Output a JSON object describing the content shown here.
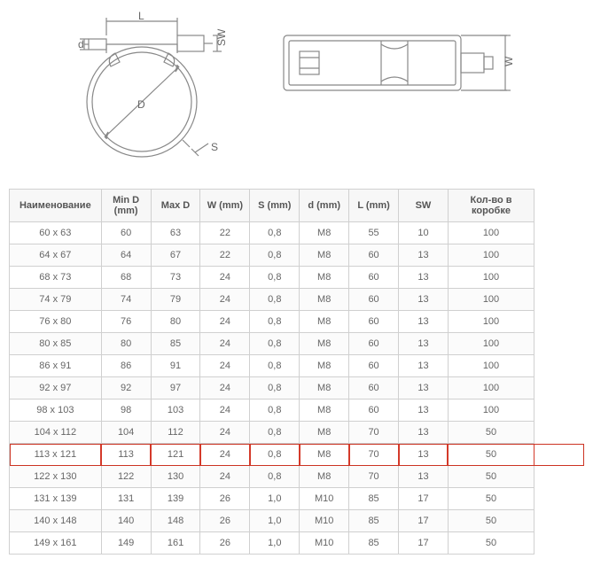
{
  "diagram": {
    "stroke": "#888888",
    "label_color": "#666666"
  },
  "table": {
    "headers": [
      "Наименование",
      "Min D (mm)",
      "Max D",
      "W (mm)",
      "S (mm)",
      "d (mm)",
      "L (mm)",
      "SW",
      "Кол-во в коробке"
    ],
    "highlight_index": 10,
    "rows": [
      [
        "60 x 63",
        "60",
        "63",
        "22",
        "0,8",
        "M8",
        "55",
        "10",
        "100"
      ],
      [
        "64 x 67",
        "64",
        "67",
        "22",
        "0,8",
        "M8",
        "60",
        "13",
        "100"
      ],
      [
        "68 x 73",
        "68",
        "73",
        "24",
        "0,8",
        "M8",
        "60",
        "13",
        "100"
      ],
      [
        "74 x 79",
        "74",
        "79",
        "24",
        "0,8",
        "M8",
        "60",
        "13",
        "100"
      ],
      [
        "76 x 80",
        "76",
        "80",
        "24",
        "0,8",
        "M8",
        "60",
        "13",
        "100"
      ],
      [
        "80 x 85",
        "80",
        "85",
        "24",
        "0,8",
        "M8",
        "60",
        "13",
        "100"
      ],
      [
        "86 x 91",
        "86",
        "91",
        "24",
        "0,8",
        "M8",
        "60",
        "13",
        "100"
      ],
      [
        "92 x 97",
        "92",
        "97",
        "24",
        "0,8",
        "M8",
        "60",
        "13",
        "100"
      ],
      [
        "98 x 103",
        "98",
        "103",
        "24",
        "0,8",
        "M8",
        "60",
        "13",
        "100"
      ],
      [
        "104 x 112",
        "104",
        "112",
        "24",
        "0,8",
        "M8",
        "70",
        "13",
        "50"
      ],
      [
        "113 x 121",
        "113",
        "121",
        "24",
        "0,8",
        "M8",
        "70",
        "13",
        "50"
      ],
      [
        "122 x 130",
        "122",
        "130",
        "24",
        "0,8",
        "M8",
        "70",
        "13",
        "50"
      ],
      [
        "131 x 139",
        "131",
        "139",
        "26",
        "1,0",
        "M10",
        "85",
        "17",
        "50"
      ],
      [
        "140 x 148",
        "140",
        "148",
        "26",
        "1,0",
        "M10",
        "85",
        "17",
        "50"
      ],
      [
        "149 x 161",
        "149",
        "161",
        "26",
        "1,0",
        "M10",
        "85",
        "17",
        "50"
      ]
    ]
  }
}
